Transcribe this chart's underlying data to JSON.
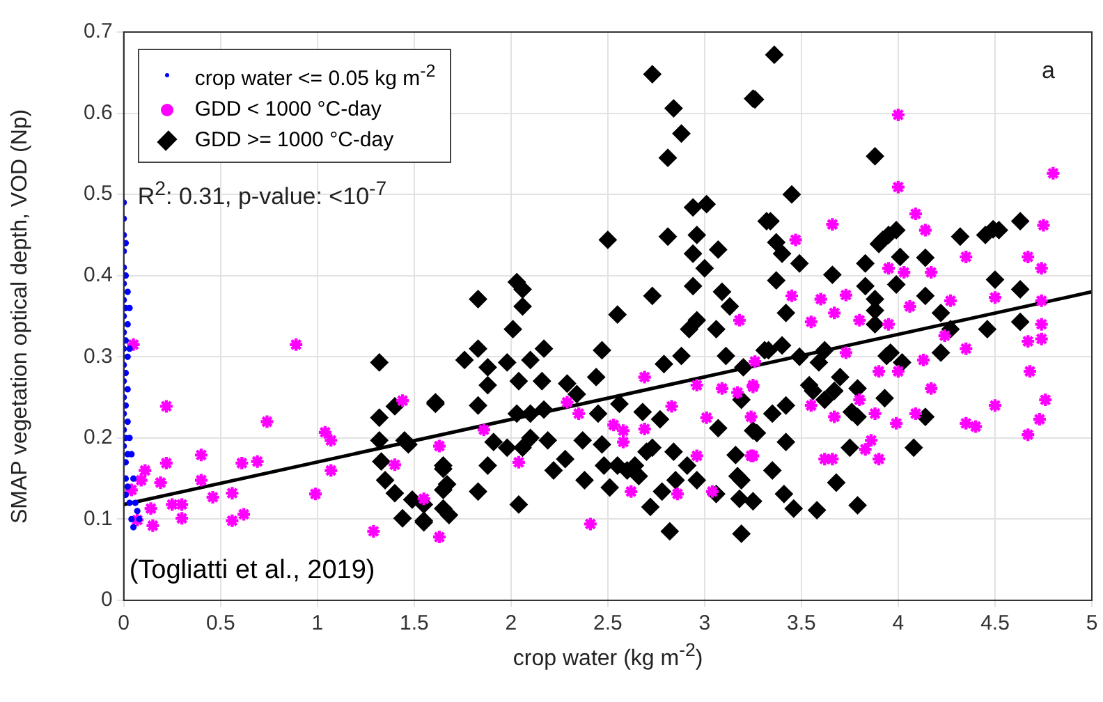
{
  "chart_data": {
    "type": "scatter",
    "xlabel": "crop water (kg m$^{-2}$)",
    "ylabel": "SMAP vegetation optical depth, VOD (Np)",
    "xlim": [
      0,
      5
    ],
    "xticks": [
      0,
      0.5,
      1,
      1.5,
      2,
      2.5,
      3,
      3.5,
      4,
      4.5,
      5
    ],
    "ylim": [
      0,
      0.7
    ],
    "yticks": [
      0,
      0.1,
      0.2,
      0.3,
      0.4,
      0.5,
      0.6,
      0.7
    ],
    "grid": true,
    "legend": "top left",
    "annotations": [
      "R$^{2}$: 0.31, p-value: <10$^{-7}$",
      "a",
      "(Togliatti et al., 2019)"
    ],
    "series": [
      {
        "name": "crop water <= 0.05 kg m$^{-2}$",
        "color": "#0000ff",
        "marker": "circle",
        "x": [
          0,
          0,
          0,
          0,
          0,
          0,
          0,
          0,
          0,
          0,
          0,
          0,
          0,
          0,
          0,
          0,
          0.01,
          0.01,
          0.01,
          0.01,
          0.01,
          0.01,
          0.01,
          0.01,
          0.01,
          0.01,
          0.02,
          0.02,
          0.02,
          0.02,
          0.02,
          0.02,
          0.02,
          0.03,
          0.03,
          0.03,
          0.03,
          0.04,
          0.04,
          0.05,
          0.05,
          0.06,
          0.07,
          0.08
        ],
        "values": [
          0.49,
          0.47,
          0.45,
          0.43,
          0.41,
          0.39,
          0.37,
          0.35,
          0.33,
          0.31,
          0.29,
          0.27,
          0.25,
          0.23,
          0.21,
          0.19,
          0.44,
          0.4,
          0.36,
          0.32,
          0.28,
          0.24,
          0.2,
          0.17,
          0.15,
          0.13,
          0.38,
          0.34,
          0.3,
          0.26,
          0.22,
          0.18,
          0.14,
          0.36,
          0.31,
          0.2,
          0.12,
          0.18,
          0.1,
          0.15,
          0.09,
          0.12,
          0.11,
          0.1
        ]
      },
      {
        "name": "GDD < 1000 °C-day",
        "color": "#ff00ff",
        "marker": "cross",
        "x": [
          0.05,
          0.09,
          0.11,
          0.04,
          0.14,
          0.15,
          0.07,
          0.19,
          0.22,
          0.22,
          0.25,
          0.3,
          0.3,
          0.4,
          0.4,
          0.46,
          0.56,
          0.56,
          0.61,
          0.62,
          0.69,
          0.74,
          0.89,
          0.99,
          1.04,
          1.07,
          1.07,
          1.29,
          1.44,
          1.4,
          1.63,
          1.63,
          1.55,
          1.86,
          2.04,
          2.29,
          2.35,
          2.41,
          2.53,
          2.58,
          2.58,
          2.62,
          2.69,
          2.69,
          2.83,
          2.86,
          2.96,
          2.96,
          3.01,
          3.09,
          3.17,
          3.18,
          3.25,
          3.24,
          3.24,
          3.26,
          3.04,
          3.47,
          3.45,
          3.25,
          3.25,
          3.55,
          3.6,
          3.66,
          3.67,
          3.73,
          3.62,
          3.67,
          3.55,
          3.73,
          3.8,
          3.8,
          3.88,
          3.86,
          3.9,
          3.95,
          4.0,
          4.0,
          3.95,
          4.0,
          3.99,
          4.03,
          4.06,
          4.09,
          4.14,
          4.17,
          4.09,
          4.17,
          4.13,
          4.24,
          4.27,
          4.35,
          4.35,
          4.35,
          4.4,
          4.5,
          4.5,
          4.67,
          4.67,
          4.68,
          4.67,
          4.73,
          4.76,
          4.74,
          4.74,
          4.74,
          4.75,
          4.8,
          4.74,
          3.9,
          3.83,
          3.66
        ],
        "values": [
          0.315,
          0.148,
          0.16,
          0.136,
          0.113,
          0.092,
          0.099,
          0.145,
          0.169,
          0.239,
          0.118,
          0.118,
          0.101,
          0.179,
          0.148,
          0.127,
          0.132,
          0.098,
          0.169,
          0.106,
          0.171,
          0.22,
          0.315,
          0.131,
          0.207,
          0.197,
          0.16,
          0.085,
          0.246,
          0.167,
          0.19,
          0.078,
          0.125,
          0.21,
          0.17,
          0.244,
          0.23,
          0.094,
          0.216,
          0.209,
          0.195,
          0.134,
          0.275,
          0.211,
          0.239,
          0.131,
          0.178,
          0.265,
          0.225,
          0.261,
          0.256,
          0.345,
          0.265,
          0.226,
          0.178,
          0.294,
          0.134,
          0.444,
          0.375,
          0.263,
          0.178,
          0.343,
          0.371,
          0.463,
          0.354,
          0.376,
          0.174,
          0.226,
          0.24,
          0.305,
          0.345,
          0.247,
          0.23,
          0.197,
          0.174,
          0.409,
          0.509,
          0.598,
          0.34,
          0.282,
          0.218,
          0.404,
          0.362,
          0.476,
          0.456,
          0.404,
          0.23,
          0.261,
          0.296,
          0.326,
          0.369,
          0.423,
          0.31,
          0.218,
          0.214,
          0.24,
          0.373,
          0.423,
          0.319,
          0.282,
          0.204,
          0.223,
          0.247,
          0.34,
          0.369,
          0.409,
          0.462,
          0.526,
          0.322,
          0.282,
          0.186,
          0.174
        ]
      },
      {
        "name": "GDD >= 1000 °C-day",
        "color": "#000000",
        "marker": "diamond",
        "x": [
          1.32,
          1.32,
          1.32,
          1.33,
          1.35,
          1.4,
          1.4,
          1.45,
          1.44,
          1.47,
          1.49,
          1.55,
          1.55,
          1.61,
          1.65,
          1.65,
          1.65,
          1.55,
          1.61,
          1.65,
          1.67,
          1.68,
          1.76,
          1.83,
          1.83,
          1.83,
          1.83,
          1.88,
          1.88,
          1.91,
          1.88,
          1.98,
          1.98,
          2.01,
          2.03,
          2.06,
          2.06,
          2.04,
          2.03,
          2.06,
          2.04,
          2.1,
          2.1,
          2.1,
          2.16,
          2.17,
          2.17,
          2.19,
          2.22,
          2.28,
          2.29,
          2.34,
          2.37,
          2.38,
          2.44,
          2.45,
          2.47,
          2.47,
          2.48,
          2.5,
          2.51,
          2.55,
          2.56,
          2.55,
          2.6,
          2.64,
          2.66,
          2.68,
          2.7,
          2.73,
          2.72,
          2.73,
          2.73,
          2.77,
          2.78,
          2.79,
          2.81,
          2.81,
          2.82,
          2.84,
          2.85,
          2.84,
          2.88,
          2.88,
          2.91,
          2.92,
          2.94,
          2.94,
          2.94,
          2.96,
          2.96,
          2.96,
          3.01,
          3.0,
          3.06,
          3.07,
          3.07,
          3.09,
          3.06,
          3.11,
          3.13,
          3.16,
          3.17,
          3.18,
          3.19,
          3.2,
          3.25,
          3.27,
          3.32,
          3.31,
          3.36,
          3.26,
          3.19,
          3.19,
          3.25,
          3.25,
          3.33,
          3.34,
          3.35,
          3.35,
          3.37,
          3.37,
          3.4,
          3.4,
          3.42,
          3.42,
          3.42,
          3.41,
          3.45,
          3.46,
          3.49,
          3.49,
          3.54,
          3.56,
          3.58,
          3.59,
          3.62,
          3.62,
          3.66,
          3.68,
          3.67,
          3.7,
          3.75,
          3.76,
          3.79,
          3.79,
          3.79,
          3.83,
          3.83,
          3.88,
          3.88,
          3.88,
          3.9,
          3.92,
          3.94,
          3.93,
          3.95,
          3.96,
          3.99,
          3.99,
          4.02,
          4.01,
          4.08,
          3.88,
          4.14,
          4.14,
          4.14,
          4.22,
          4.22,
          4.27,
          4.32,
          4.45,
          4.46,
          4.49,
          4.52,
          4.5,
          4.63,
          4.63,
          4.63
        ],
        "values": [
          0.293,
          0.225,
          0.197,
          0.171,
          0.148,
          0.239,
          0.132,
          0.197,
          0.101,
          0.192,
          0.124,
          0.098,
          0.118,
          0.242,
          0.162,
          0.136,
          0.113,
          0.096,
          0.244,
          0.166,
          0.143,
          0.105,
          0.296,
          0.134,
          0.371,
          0.31,
          0.24,
          0.265,
          0.287,
          0.195,
          0.166,
          0.293,
          0.188,
          0.334,
          0.392,
          0.383,
          0.362,
          0.27,
          0.23,
          0.188,
          0.118,
          0.296,
          0.23,
          0.2,
          0.27,
          0.235,
          0.31,
          0.197,
          0.16,
          0.174,
          0.267,
          0.254,
          0.197,
          0.148,
          0.275,
          0.23,
          0.308,
          0.192,
          0.166,
          0.444,
          0.139,
          0.352,
          0.242,
          0.166,
          0.16,
          0.166,
          0.153,
          0.232,
          0.183,
          0.648,
          0.115,
          0.375,
          0.188,
          0.223,
          0.134,
          0.291,
          0.545,
          0.448,
          0.085,
          0.606,
          0.148,
          0.183,
          0.575,
          0.301,
          0.166,
          0.334,
          0.387,
          0.484,
          0.427,
          0.345,
          0.45,
          0.148,
          0.488,
          0.409,
          0.334,
          0.432,
          0.212,
          0.38,
          0.131,
          0.301,
          0.362,
          0.179,
          0.153,
          0.125,
          0.082,
          0.287,
          0.618,
          0.206,
          0.467,
          0.308,
          0.672,
          0.617,
          0.247,
          0.148,
          0.209,
          0.122,
          0.308,
          0.467,
          0.16,
          0.23,
          0.441,
          0.394,
          0.314,
          0.427,
          0.354,
          0.24,
          0.195,
          0.131,
          0.5,
          0.113,
          0.415,
          0.3,
          0.265,
          0.258,
          0.111,
          0.293,
          0.308,
          0.247,
          0.401,
          0.145,
          0.258,
          0.275,
          0.188,
          0.232,
          0.261,
          0.117,
          0.226,
          0.415,
          0.387,
          0.371,
          0.357,
          0.34,
          0.439,
          0.444,
          0.301,
          0.249,
          0.45,
          0.305,
          0.456,
          0.389,
          0.293,
          0.423,
          0.188,
          0.547,
          0.422,
          0.375,
          0.226,
          0.354,
          0.305,
          0.334,
          0.448,
          0.45,
          0.334,
          0.457,
          0.456,
          0.395,
          0.467,
          0.383,
          0.343
        ]
      },
      {
        "type": "line",
        "color": "#000000",
        "marker": "none",
        "x": [
          0,
          5
        ],
        "values": [
          0.118,
          0.38
        ]
      }
    ]
  }
}
